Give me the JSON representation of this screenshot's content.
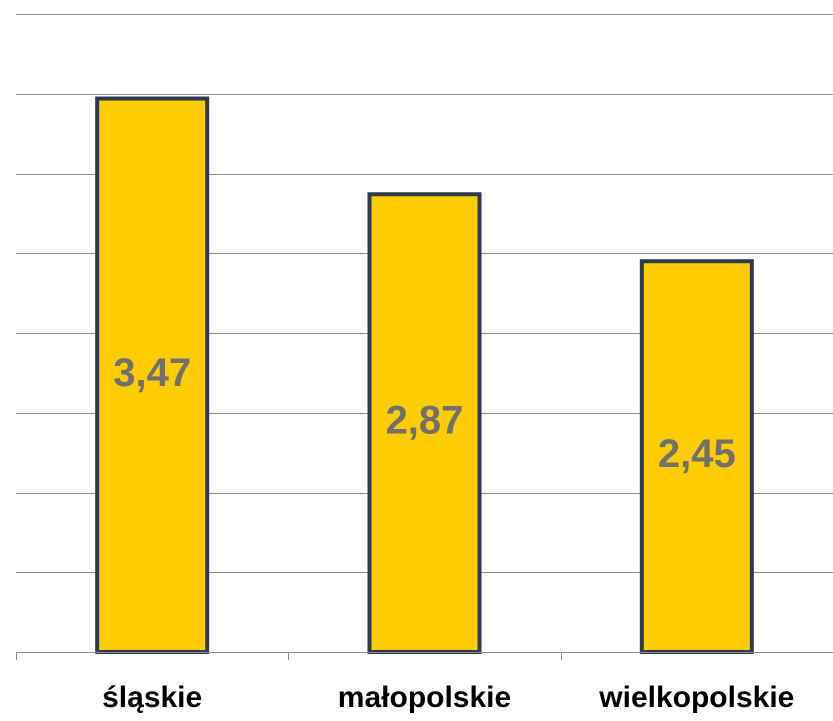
{
  "chart_data": {
    "type": "bar",
    "title": "",
    "xlabel": "",
    "ylabel": "",
    "categories": [
      "śląskie",
      "małopolskie",
      "wielkopolskie"
    ],
    "values": [
      3.47,
      2.87,
      2.45
    ],
    "value_labels": [
      "3,47",
      "2,87",
      "2,45"
    ],
    "ylim": [
      0,
      4
    ],
    "y_grid_step": 0.5,
    "grid": true,
    "legend": "none",
    "colors": {
      "bar_fill": "#FFCC00",
      "bar_stroke": "#2E3B4E",
      "value_label": "#707070",
      "grid": "#8C8C8C"
    }
  }
}
